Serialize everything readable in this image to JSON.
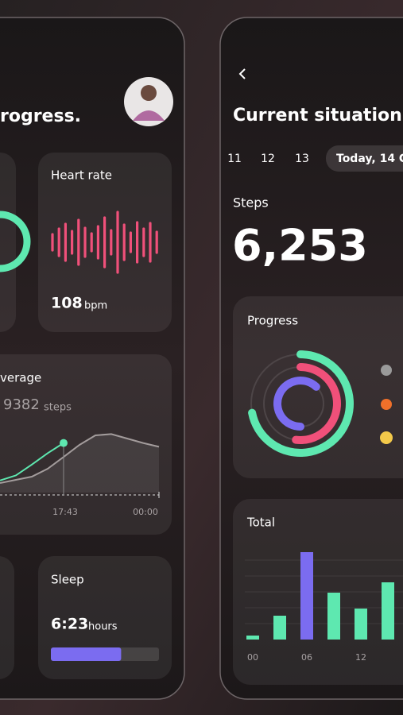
{
  "left_screen": {
    "title": "rogress.",
    "heart_rate": {
      "label": "Heart rate",
      "value": "108",
      "unit": "bpm",
      "color": "#f0507a",
      "wave": [
        20,
        34,
        46,
        28,
        56,
        36,
        22,
        40,
        62,
        30,
        76,
        44,
        24,
        50,
        34,
        48,
        26
      ]
    },
    "average": {
      "label": "verage",
      "value": "9382",
      "unit": "steps",
      "time_labels": [
        "17:43",
        "00:00"
      ],
      "ylim": [
        0,
        100
      ],
      "lines": [
        {
          "color": "#a39c9c",
          "values": [
            15,
            20,
            25,
            37.5,
            56,
            75,
            90,
            92,
            85,
            78,
            72
          ]
        },
        {
          "color": "#5ee8b0",
          "values": [
            19,
            27,
            44,
            62,
            78,
            null,
            null,
            null,
            null,
            null,
            null
          ]
        }
      ]
    },
    "sleep": {
      "label": "Sleep",
      "value": "6:23",
      "unit": "hours",
      "progress": 65,
      "color": "#7b6cf0"
    }
  },
  "right_screen": {
    "title": "Current situation",
    "dates": [
      "11",
      "12",
      "13",
      "Today, 14 C"
    ],
    "steps": {
      "label": "Steps",
      "value": "6,253"
    },
    "progress": {
      "label": "Progress",
      "rings": [
        {
          "color": "#5ee8b0",
          "value": 72
        },
        {
          "color": "#f0507a",
          "value": 52
        },
        {
          "color": "#7b6cf0",
          "value": 62
        }
      ]
    },
    "total": {
      "label": "Total",
      "categories": [
        "00",
        null,
        "06",
        null,
        "12",
        null
      ],
      "values": [
        5,
        30,
        110,
        59,
        39,
        72
      ],
      "colors": [
        "#5ee8b0",
        "#5ee8b0",
        "#7b6cf0",
        "#5ee8b0",
        "#5ee8b0",
        "#5ee8b0"
      ],
      "ylim": [
        0,
        120
      ],
      "yticks": [
        20,
        40,
        60,
        80,
        100
      ],
      "grid": true
    }
  }
}
